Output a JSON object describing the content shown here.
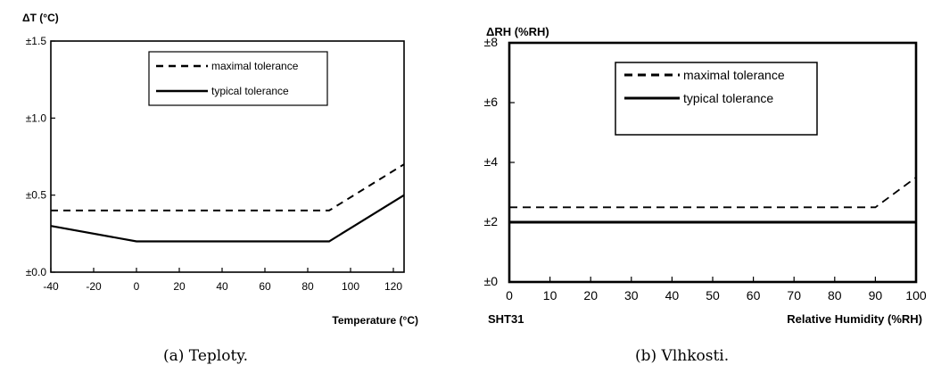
{
  "chart_data": [
    {
      "type": "line",
      "title": "",
      "ylabel": "ΔT (°C)",
      "xlabel": "Temperature (°C)",
      "caption": "(a) Teploty.",
      "xlim": [
        -40,
        125
      ],
      "ylim": [
        0,
        1.5
      ],
      "x_ticks": [
        -40,
        -20,
        0,
        20,
        40,
        60,
        80,
        100,
        120
      ],
      "y_ticks": [
        {
          "value": 0,
          "label": "±0.0"
        },
        {
          "value": 0.5,
          "label": "±0.5"
        },
        {
          "value": 1.0,
          "label": "±1.0"
        },
        {
          "value": 1.5,
          "label": "±1.5"
        }
      ],
      "grid": false,
      "legend_position": "top-right",
      "series": [
        {
          "name": "maximal tolerance",
          "style": "dashed",
          "x": [
            -40,
            90,
            125
          ],
          "y": [
            0.4,
            0.4,
            0.7
          ]
        },
        {
          "name": "typical tolerance",
          "style": "solid",
          "x": [
            -40,
            0,
            90,
            125
          ],
          "y": [
            0.3,
            0.2,
            0.2,
            0.5
          ]
        }
      ]
    },
    {
      "type": "line",
      "title": "",
      "ylabel": "ΔRH (%RH)",
      "xlabel": "Relative Humidity (%RH)",
      "corner_label": "SHT31",
      "caption": "(b) Vlhkosti.",
      "xlim": [
        0,
        100
      ],
      "ylim": [
        0,
        8
      ],
      "x_ticks": [
        0,
        10,
        20,
        30,
        40,
        50,
        60,
        70,
        80,
        90,
        100
      ],
      "y_ticks": [
        {
          "value": 0,
          "label": "±0"
        },
        {
          "value": 2,
          "label": "±2"
        },
        {
          "value": 4,
          "label": "±4"
        },
        {
          "value": 6,
          "label": "±6"
        },
        {
          "value": 8,
          "label": "±8"
        }
      ],
      "grid": false,
      "legend_position": "top-right",
      "series": [
        {
          "name": "maximal tolerance",
          "style": "dashed",
          "x": [
            0,
            90,
            100
          ],
          "y": [
            2.5,
            2.5,
            3.5
          ]
        },
        {
          "name": "typical tolerance",
          "style": "solid",
          "x": [
            0,
            100
          ],
          "y": [
            2,
            2
          ]
        }
      ]
    }
  ]
}
